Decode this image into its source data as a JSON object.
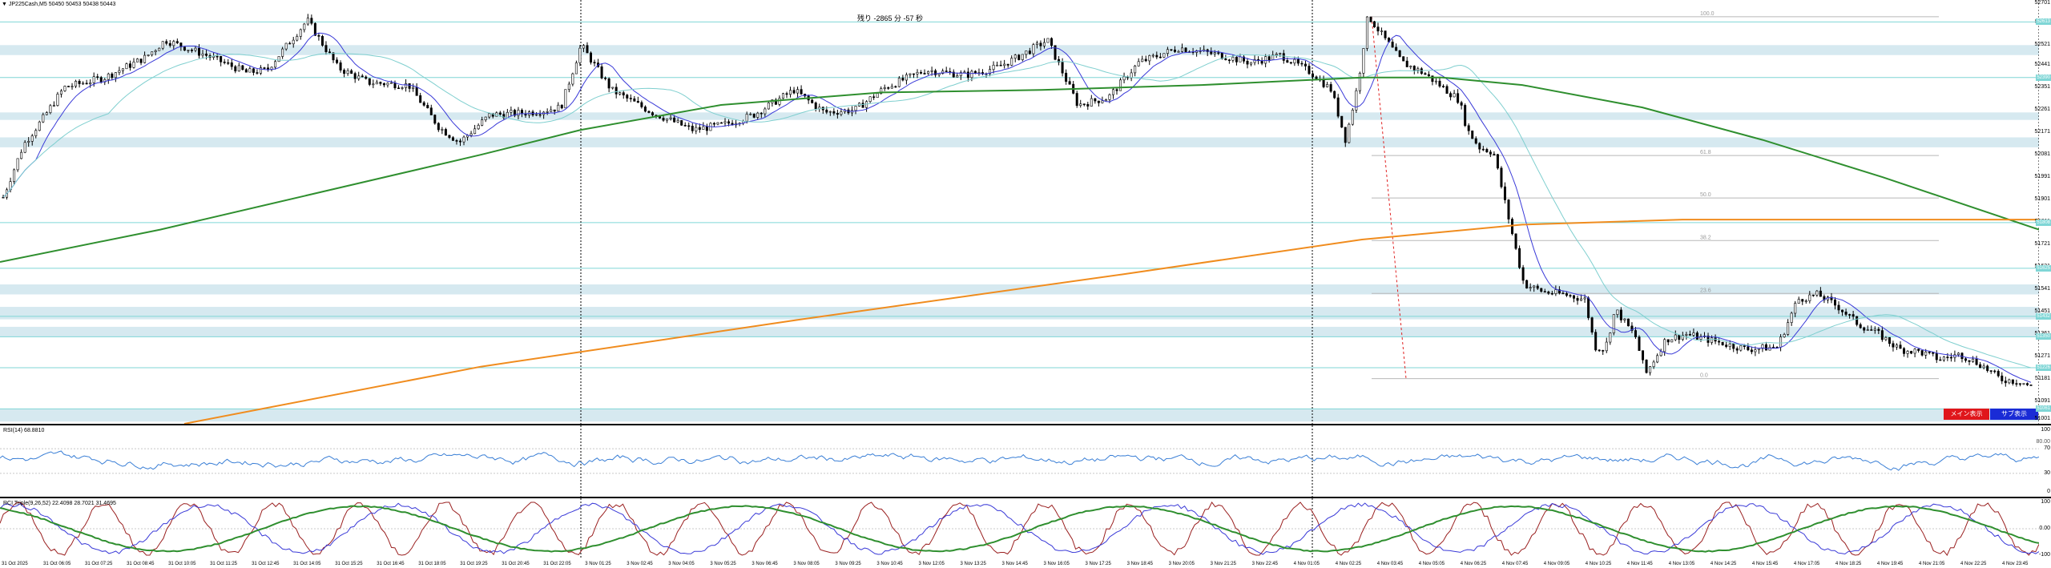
{
  "window": {
    "title": "JP225Cash,M5",
    "ohlc": "50450 50453 50438 50443",
    "countdown": "残り -2865 分 -57 秒"
  },
  "colors": {
    "zone": "#d6e9f0",
    "hline": "#7fd6d6",
    "candle": "#000000",
    "ma_fast": "#3a3ad8",
    "ma_mid": "#7fcfcf",
    "ma_long": "#2f8f2f",
    "ma_very_long": "#f08c1e",
    "fib_line": "#b8b8b8",
    "fib_trend": "#e02020",
    "rsi_line": "#3a7fd6",
    "rci_short": "#9a2020",
    "rci_mid": "#3a3ad8",
    "rci_long": "#2f8f2f",
    "button_main": "#e0161b",
    "button_sub": "#1a2bd6"
  },
  "main_price_axis": [
    "52701",
    "52611",
    "52521",
    "52441",
    "52351",
    "52261",
    "52171",
    "52081",
    "51991",
    "51901",
    "51811",
    "51721",
    "51631",
    "51541",
    "51451",
    "51361",
    "51271",
    "51181",
    "51091",
    "51001"
  ],
  "price_tags": [
    {
      "label": "52613",
      "value": 52613
    },
    {
      "label": "52390",
      "value": 52390
    },
    {
      "label": "51808",
      "value": 51808
    },
    {
      "label": "51625",
      "value": 51625
    },
    {
      "label": "51432",
      "value": 51432
    },
    {
      "label": "51350",
      "value": 51350
    },
    {
      "label": "51226",
      "value": 51226
    },
    {
      "label": "51061",
      "value": 51061
    }
  ],
  "fibonacci": [
    {
      "label": "100.0",
      "value": 52634
    },
    {
      "label": "61.8",
      "value": 52077
    },
    {
      "label": "50.0",
      "value": 51907
    },
    {
      "label": "38.2",
      "value": 51736
    },
    {
      "label": "23.6",
      "value": 51524
    },
    {
      "label": "0.0",
      "value": 51182
    }
  ],
  "buttons": {
    "main": "メイン表示",
    "sub": "サブ表示"
  },
  "rsi": {
    "title": "RSI(14) 68.8810",
    "axis": [
      "100",
      "70",
      "30",
      "0"
    ],
    "level_tag": "80.00"
  },
  "rci": {
    "title": "RCI Triple(9,26,52) 22.4098 28.7021 31.4695",
    "axis": [
      "100",
      "0.00",
      "-100"
    ]
  },
  "time_axis": [
    "31 Oct 2025",
    "31 Oct 06:05",
    "31 Oct 07:25",
    "31 Oct 08:45",
    "31 Oct 10:05",
    "31 Oct 11:25",
    "31 Oct 12:45",
    "31 Oct 14:05",
    "31 Oct 15:25",
    "31 Oct 16:45",
    "31 Oct 18:05",
    "31 Oct 19:25",
    "31 Oct 20:45",
    "31 Oct 22:05",
    "3 Nov 01:25",
    "3 Nov 02:45",
    "3 Nov 04:05",
    "3 Nov 05:25",
    "3 Nov 06:45",
    "3 Nov 08:05",
    "3 Nov 09:25",
    "3 Nov 10:45",
    "3 Nov 12:05",
    "3 Nov 13:25",
    "3 Nov 14:45",
    "3 Nov 16:05",
    "3 Nov 17:25",
    "3 Nov 18:45",
    "3 Nov 20:05",
    "3 Nov 21:25",
    "3 Nov 22:45",
    "4 Nov 01:05",
    "4 Nov 02:25",
    "4 Nov 03:45",
    "4 Nov 05:05",
    "4 Nov 06:25",
    "4 Nov 07:45",
    "4 Nov 09:05",
    "4 Nov 10:25",
    "4 Nov 11:45",
    "4 Nov 13:05",
    "4 Nov 14:25",
    "4 Nov 15:45",
    "4 Nov 17:05",
    "4 Nov 18:25",
    "4 Nov 19:45",
    "4 Nov 21:05",
    "4 Nov 22:25",
    "4 Nov 23:45"
  ],
  "chart_data": {
    "type": "candlestick",
    "symbol": "JP225Cash",
    "timeframe": "M5",
    "ylim": [
      51001,
      52701
    ],
    "price_series": [
      [
        0,
        51910
      ],
      [
        0.01,
        52120
      ],
      [
        0.02,
        52230
      ],
      [
        0.03,
        52350
      ],
      [
        0.05,
        52390
      ],
      [
        0.07,
        52470
      ],
      [
        0.08,
        52540
      ],
      [
        0.1,
        52480
      ],
      [
        0.12,
        52410
      ],
      [
        0.13,
        52420
      ],
      [
        0.14,
        52520
      ],
      [
        0.15,
        52620
      ],
      [
        0.165,
        52430
      ],
      [
        0.18,
        52370
      ],
      [
        0.2,
        52360
      ],
      [
        0.215,
        52190
      ],
      [
        0.225,
        52130
      ],
      [
        0.24,
        52240
      ],
      [
        0.26,
        52250
      ],
      [
        0.275,
        52270
      ],
      [
        0.285,
        52520
      ],
      [
        0.3,
        52340
      ],
      [
        0.32,
        52250
      ],
      [
        0.34,
        52180
      ],
      [
        0.355,
        52200
      ],
      [
        0.37,
        52240
      ],
      [
        0.39,
        52340
      ],
      [
        0.405,
        52250
      ],
      [
        0.42,
        52260
      ],
      [
        0.435,
        52350
      ],
      [
        0.455,
        52420
      ],
      [
        0.475,
        52400
      ],
      [
        0.49,
        52430
      ],
      [
        0.5,
        52470
      ],
      [
        0.515,
        52540
      ],
      [
        0.53,
        52280
      ],
      [
        0.545,
        52310
      ],
      [
        0.56,
        52450
      ],
      [
        0.58,
        52510
      ],
      [
        0.6,
        52480
      ],
      [
        0.615,
        52450
      ],
      [
        0.63,
        52480
      ],
      [
        0.645,
        52410
      ],
      [
        0.655,
        52340
      ],
      [
        0.662,
        52140
      ],
      [
        0.668,
        52360
      ],
      [
        0.673,
        52640
      ],
      [
        0.68,
        52560
      ],
      [
        0.69,
        52450
      ],
      [
        0.7,
        52410
      ],
      [
        0.71,
        52350
      ],
      [
        0.718,
        52300
      ],
      [
        0.722,
        52180
      ],
      [
        0.728,
        52110
      ],
      [
        0.735,
        52090
      ],
      [
        0.742,
        51840
      ],
      [
        0.75,
        51560
      ],
      [
        0.76,
        51530
      ],
      [
        0.77,
        51520
      ],
      [
        0.78,
        51500
      ],
      [
        0.785,
        51310
      ],
      [
        0.79,
        51300
      ],
      [
        0.795,
        51460
      ],
      [
        0.805,
        51350
      ],
      [
        0.81,
        51200
      ],
      [
        0.82,
        51340
      ],
      [
        0.83,
        51360
      ],
      [
        0.845,
        51330
      ],
      [
        0.86,
        51300
      ],
      [
        0.875,
        51310
      ],
      [
        0.885,
        51500
      ],
      [
        0.895,
        51520
      ],
      [
        0.905,
        51470
      ],
      [
        0.915,
        51400
      ],
      [
        0.925,
        51360
      ],
      [
        0.935,
        51300
      ],
      [
        0.945,
        51290
      ],
      [
        0.955,
        51260
      ],
      [
        0.965,
        51280
      ],
      [
        0.975,
        51240
      ],
      [
        0.985,
        51180
      ],
      [
        0.995,
        51170
      ],
      [
        1.0,
        51150
      ]
    ],
    "moving_averages": [
      {
        "name": "MA fast",
        "color": "#3a3ad8"
      },
      {
        "name": "MA mid",
        "color": "#7fcfcf"
      },
      {
        "name": "MA long",
        "color": "#2f8f2f"
      },
      {
        "name": "MA very long",
        "color": "#f08c1e"
      }
    ],
    "rsi_value": 68.881,
    "rci_values": [
      22.4098,
      28.7021,
      31.4695
    ]
  }
}
